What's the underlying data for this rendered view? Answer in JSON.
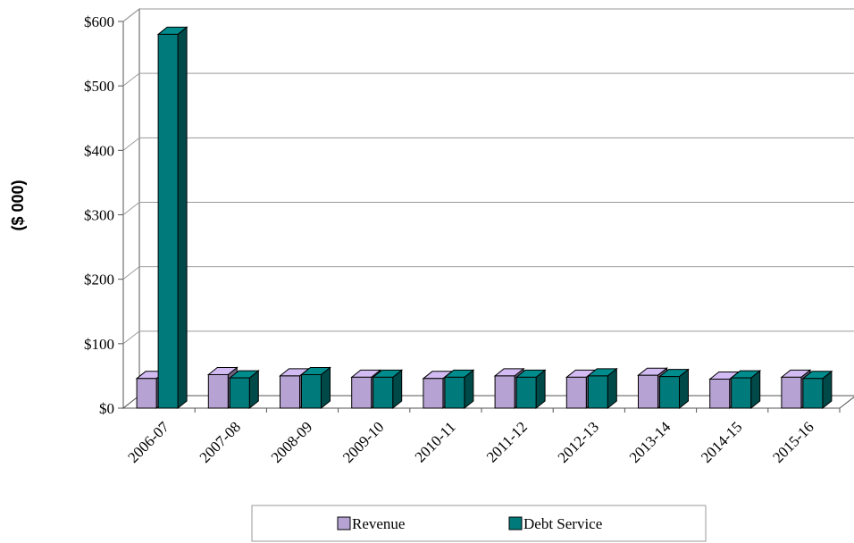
{
  "chart_data": {
    "type": "bar",
    "title": "",
    "xlabel": "",
    "ylabel": "($ 000)",
    "ylim": [
      0,
      600
    ],
    "yticks": [
      "$0",
      "$100",
      "$200",
      "$300",
      "$400",
      "$500",
      "$600"
    ],
    "grid": true,
    "legend_position": "bottom",
    "categories": [
      "2006-07",
      "2007-08",
      "2008-09",
      "2009-10",
      "2010-11",
      "2011-12",
      "2012-13",
      "2013-14",
      "2014-15",
      "2015-16"
    ],
    "series": [
      {
        "name": "Revenue",
        "color": "#b7a3d3",
        "values": [
          46,
          52,
          50,
          48,
          46,
          50,
          48,
          51,
          45,
          48
        ]
      },
      {
        "name": "Debt Service",
        "color": "#007a7a",
        "values": [
          580,
          47,
          52,
          48,
          48,
          48,
          50,
          49,
          47,
          46
        ]
      }
    ]
  }
}
